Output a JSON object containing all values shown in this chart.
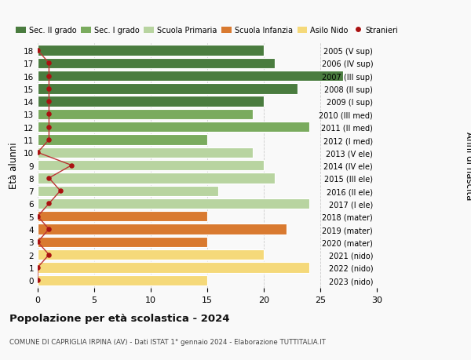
{
  "ages": [
    18,
    17,
    16,
    15,
    14,
    13,
    12,
    11,
    10,
    9,
    8,
    7,
    6,
    5,
    4,
    3,
    2,
    1,
    0
  ],
  "years": [
    "2005 (V sup)",
    "2006 (IV sup)",
    "2007 (III sup)",
    "2008 (II sup)",
    "2009 (I sup)",
    "2010 (III med)",
    "2011 (II med)",
    "2012 (I med)",
    "2013 (V ele)",
    "2014 (IV ele)",
    "2015 (III ele)",
    "2016 (II ele)",
    "2017 (I ele)",
    "2018 (mater)",
    "2019 (mater)",
    "2020 (mater)",
    "2021 (nido)",
    "2022 (nido)",
    "2023 (nido)"
  ],
  "values": [
    20,
    21,
    27,
    23,
    20,
    19,
    24,
    15,
    19,
    20,
    21,
    16,
    24,
    15,
    22,
    15,
    20,
    24,
    15
  ],
  "stranieri": [
    0,
    1,
    1,
    1,
    1,
    1,
    1,
    1,
    0,
    3,
    1,
    2,
    1,
    0,
    1,
    0,
    1,
    0,
    0
  ],
  "bar_colors": [
    "#4a7c3f",
    "#4a7c3f",
    "#4a7c3f",
    "#4a7c3f",
    "#4a7c3f",
    "#7aab5e",
    "#7aab5e",
    "#7aab5e",
    "#b8d4a0",
    "#b8d4a0",
    "#b8d4a0",
    "#b8d4a0",
    "#b8d4a0",
    "#d97a30",
    "#d97a30",
    "#d97a30",
    "#f5d97a",
    "#f5d97a",
    "#f5d97a"
  ],
  "legend_labels": [
    "Sec. II grado",
    "Sec. I grado",
    "Scuola Primaria",
    "Scuola Infanzia",
    "Asilo Nido",
    "Stranieri"
  ],
  "legend_colors": [
    "#4a7c3f",
    "#7aab5e",
    "#b8d4a0",
    "#d97a30",
    "#f5d97a",
    "#b22222"
  ],
  "title": "Popolazione per età scolastica - 2024",
  "subtitle": "COMUNE DI CAPRIGLIA IRPINA (AV) - Dati ISTAT 1° gennaio 2024 - Elaborazione TUTTITALIA.IT",
  "ylabel_left": "Età alunni",
  "ylabel_right": "Anni di nascita",
  "xlim": [
    0,
    30
  ],
  "xticks": [
    0,
    5,
    10,
    15,
    20,
    25,
    30
  ],
  "bg_color": "#f9f9f9",
  "stranieri_color": "#aa1111",
  "stranieri_line_color": "#bb3333"
}
